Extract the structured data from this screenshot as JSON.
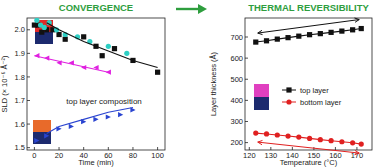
{
  "chart_data": [
    {
      "type": "scatter",
      "title": "CONVERGENCE",
      "x_label": "Time (min)",
      "y_label": "SLD (× 10⁻⁶ Å⁻²)",
      "annotation": "top layer composition",
      "xlim": [
        -6,
        106
      ],
      "ylim": [
        1.49,
        2.05
      ],
      "xticks": [
        0,
        20,
        40,
        60,
        80,
        100
      ],
      "yticks": [
        1.5,
        1.6,
        1.7,
        1.8,
        1.9,
        {
          "value": 2,
          "label": "2.0"
        }
      ],
      "series": [
        {
          "type": "scatter",
          "color": "#111111",
          "marker": "square",
          "line_style": "none",
          "x": [
            0,
            3,
            6,
            10,
            15,
            20,
            25,
            40,
            50,
            55,
            65,
            80,
            100
          ],
          "values": [
            2.02,
            2.02,
            1.99,
            2.0,
            2.0,
            1.98,
            1.96,
            1.97,
            1.93,
            1.89,
            1.92,
            1.87,
            1.82
          ]
        },
        {
          "type": "scatter",
          "color": "#2ecfc4",
          "marker": "circle",
          "line_style": "none",
          "x": [
            2,
            5,
            8,
            12,
            18,
            25,
            35,
            45,
            60,
            75
          ],
          "values": [
            2.04,
            2.02,
            2.01,
            2.03,
            2.0,
            1.98,
            1.97,
            1.95,
            1.93,
            1.9
          ]
        },
        {
          "type": "scatter",
          "color": "#e020e0",
          "marker": "triangle-left",
          "line_style": "none",
          "x": [
            2,
            10,
            20,
            30,
            40,
            50,
            60
          ],
          "values": [
            1.89,
            1.88,
            1.86,
            1.86,
            1.84,
            1.84,
            1.82
          ]
        },
        {
          "type": "scatter",
          "color": "#2a44d0",
          "marker": "triangle-right",
          "line_style": "none",
          "x": [
            2,
            10,
            20,
            30,
            40,
            50,
            60,
            70,
            80
          ],
          "values": [
            1.53,
            1.55,
            1.58,
            1.59,
            1.61,
            1.62,
            1.63,
            1.64,
            1.66
          ]
        },
        {
          "type": "line",
          "color": "#111111",
          "marker": "none",
          "line_style": "solid",
          "x": [
            10,
            20,
            40,
            60,
            80,
            100
          ],
          "values": [
            2.03,
            2.0,
            1.95,
            1.91,
            1.87,
            1.84
          ]
        },
        {
          "type": "line",
          "color": "#e020e0",
          "marker": "none",
          "line_style": "solid",
          "x": [
            0,
            60
          ],
          "values": [
            1.89,
            1.82
          ]
        },
        {
          "type": "line",
          "color": "#2a44d0",
          "marker": "none",
          "line_style": "solid",
          "x": [
            10,
            20,
            40,
            60,
            80
          ],
          "values": [
            1.56,
            1.59,
            1.62,
            1.65,
            1.67
          ]
        }
      ]
    },
    {
      "type": "line",
      "title": "THERMAL REVERSIBILITY",
      "x_label": "Temperature (°C)",
      "y_label": "Layer thickness (Å)",
      "legend": "center",
      "xlim": [
        118,
        177
      ],
      "ylim": [
        165,
        790
      ],
      "xticks": [
        120,
        130,
        140,
        150,
        160,
        170
      ],
      "yticks": [
        200,
        300,
        400,
        500,
        600,
        700
      ],
      "series": [
        {
          "name": "top layer",
          "color": "#111111",
          "marker": "square",
          "line_style": "solid",
          "x": [
            123,
            128,
            133,
            138,
            143,
            148,
            153,
            158,
            163,
            168,
            172
          ],
          "values": [
            676,
            682,
            690,
            697,
            704,
            711,
            716,
            722,
            728,
            734,
            740
          ]
        },
        {
          "name": "bottom layer",
          "color": "#e02020",
          "marker": "circle",
          "line_style": "solid",
          "x": [
            123,
            128,
            133,
            138,
            143,
            148,
            153,
            158,
            163,
            168,
            172
          ],
          "values": [
            245,
            241,
            236,
            231,
            226,
            220,
            214,
            209,
            204,
            199,
            193
          ]
        }
      ]
    }
  ]
}
